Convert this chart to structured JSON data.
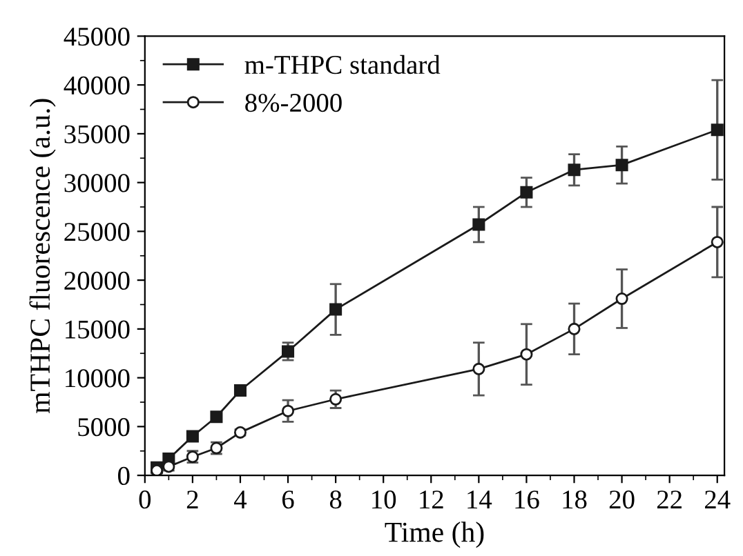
{
  "chart_data": {
    "type": "line",
    "xlabel": "Time (h)",
    "ylabel": "mTHPC fluorescence (a.u.)",
    "x": [
      0.5,
      1,
      2,
      3,
      4,
      6,
      8,
      14,
      16,
      18,
      20,
      24
    ],
    "series": [
      {
        "name": "m-THPC standard",
        "color": "#1a1a1a",
        "marker": "square",
        "values": [
          800,
          1700,
          4000,
          6000,
          8700,
          12700,
          17000,
          25700,
          29000,
          31300,
          31800,
          35400
        ],
        "errors": [
          300,
          300,
          300,
          300,
          300,
          900,
          2600,
          1800,
          1500,
          1600,
          1900,
          5100
        ]
      },
      {
        "name": "8%-2000",
        "color": "#1a1a1a",
        "marker": "circle",
        "values": [
          500,
          900,
          1900,
          2800,
          4400,
          6600,
          7800,
          10900,
          12400,
          15000,
          18100,
          23900
        ],
        "errors": [
          300,
          400,
          600,
          600,
          300,
          1100,
          900,
          2700,
          3100,
          2600,
          3000,
          3600
        ]
      }
    ],
    "xlim": [
      0,
      24.3
    ],
    "xticks": [
      0,
      2,
      4,
      6,
      8,
      10,
      12,
      14,
      16,
      18,
      20,
      22,
      24
    ],
    "ylim": [
      0,
      45000
    ],
    "yticks": [
      0,
      5000,
      10000,
      15000,
      20000,
      25000,
      30000,
      35000,
      40000,
      45000
    ],
    "legend": "top left",
    "grid": false,
    "line_style": "solid"
  }
}
